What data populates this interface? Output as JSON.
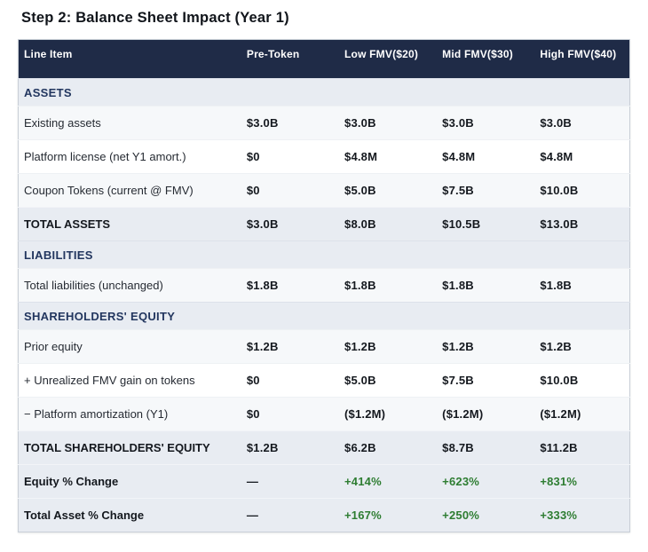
{
  "title": "Step 2: Balance Sheet Impact (Year 1)",
  "table": {
    "columns": [
      "Line Item",
      "Pre-Token",
      "Low FMV($20)",
      "Mid FMV($30)",
      "High FMV($40)"
    ],
    "rows": [
      {
        "type": "section",
        "label": "ASSETS",
        "values": [
          "",
          "",
          "",
          ""
        ]
      },
      {
        "type": "data",
        "alt": true,
        "label": "Existing assets",
        "values": [
          "$3.0B",
          "$3.0B",
          "$3.0B",
          "$3.0B"
        ]
      },
      {
        "type": "data",
        "alt": false,
        "label": "Platform license (net Y1 amort.)",
        "values": [
          "$0",
          "$4.8M",
          "$4.8M",
          "$4.8M"
        ]
      },
      {
        "type": "data",
        "alt": true,
        "label": "Coupon Tokens (current @ FMV)",
        "values": [
          "$0",
          "$5.0B",
          "$7.5B",
          "$10.0B"
        ]
      },
      {
        "type": "total",
        "label": "TOTAL ASSETS",
        "values": [
          "$3.0B",
          "$8.0B",
          "$10.5B",
          "$13.0B"
        ]
      },
      {
        "type": "section",
        "label": "LIABILITIES",
        "values": [
          "",
          "",
          "",
          ""
        ]
      },
      {
        "type": "data",
        "alt": true,
        "label": "Total liabilities (unchanged)",
        "values": [
          "$1.8B",
          "$1.8B",
          "$1.8B",
          "$1.8B"
        ]
      },
      {
        "type": "section",
        "label": "SHAREHOLDERS' EQUITY",
        "values": [
          "",
          "",
          "",
          ""
        ]
      },
      {
        "type": "data",
        "alt": true,
        "label": "Prior equity",
        "values": [
          "$1.2B",
          "$1.2B",
          "$1.2B",
          "$1.2B"
        ]
      },
      {
        "type": "data",
        "alt": false,
        "label": "+ Unrealized FMV gain on tokens",
        "values": [
          "$0",
          "$5.0B",
          "$7.5B",
          "$10.0B"
        ]
      },
      {
        "type": "data",
        "alt": true,
        "label": "− Platform amortization (Y1)",
        "values": [
          "$0",
          "($1.2M)",
          "($1.2M)",
          "($1.2M)"
        ]
      },
      {
        "type": "total",
        "label": "TOTAL SHAREHOLDERS' EQUITY",
        "values": [
          "$1.2B",
          "$6.2B",
          "$8.7B",
          "$11.2B"
        ]
      },
      {
        "type": "percent",
        "label": "Equity % Change",
        "values": [
          "—",
          "+414%",
          "+623%",
          "+831%"
        ]
      },
      {
        "type": "percent",
        "label": "Total Asset % Change",
        "values": [
          "—",
          "+167%",
          "+250%",
          "+333%"
        ]
      }
    ]
  },
  "colors": {
    "header_bg": "#1f2b47",
    "header_text": "#ffffff",
    "highlight_bg": "#e8ecf2",
    "row_alt_bg": "#f6f8fa",
    "section_text": "#22365f",
    "value_text": "#14181e",
    "label_text": "#262b33",
    "positive_green": "#2e7d32",
    "table_border": "#c9cfd7"
  }
}
